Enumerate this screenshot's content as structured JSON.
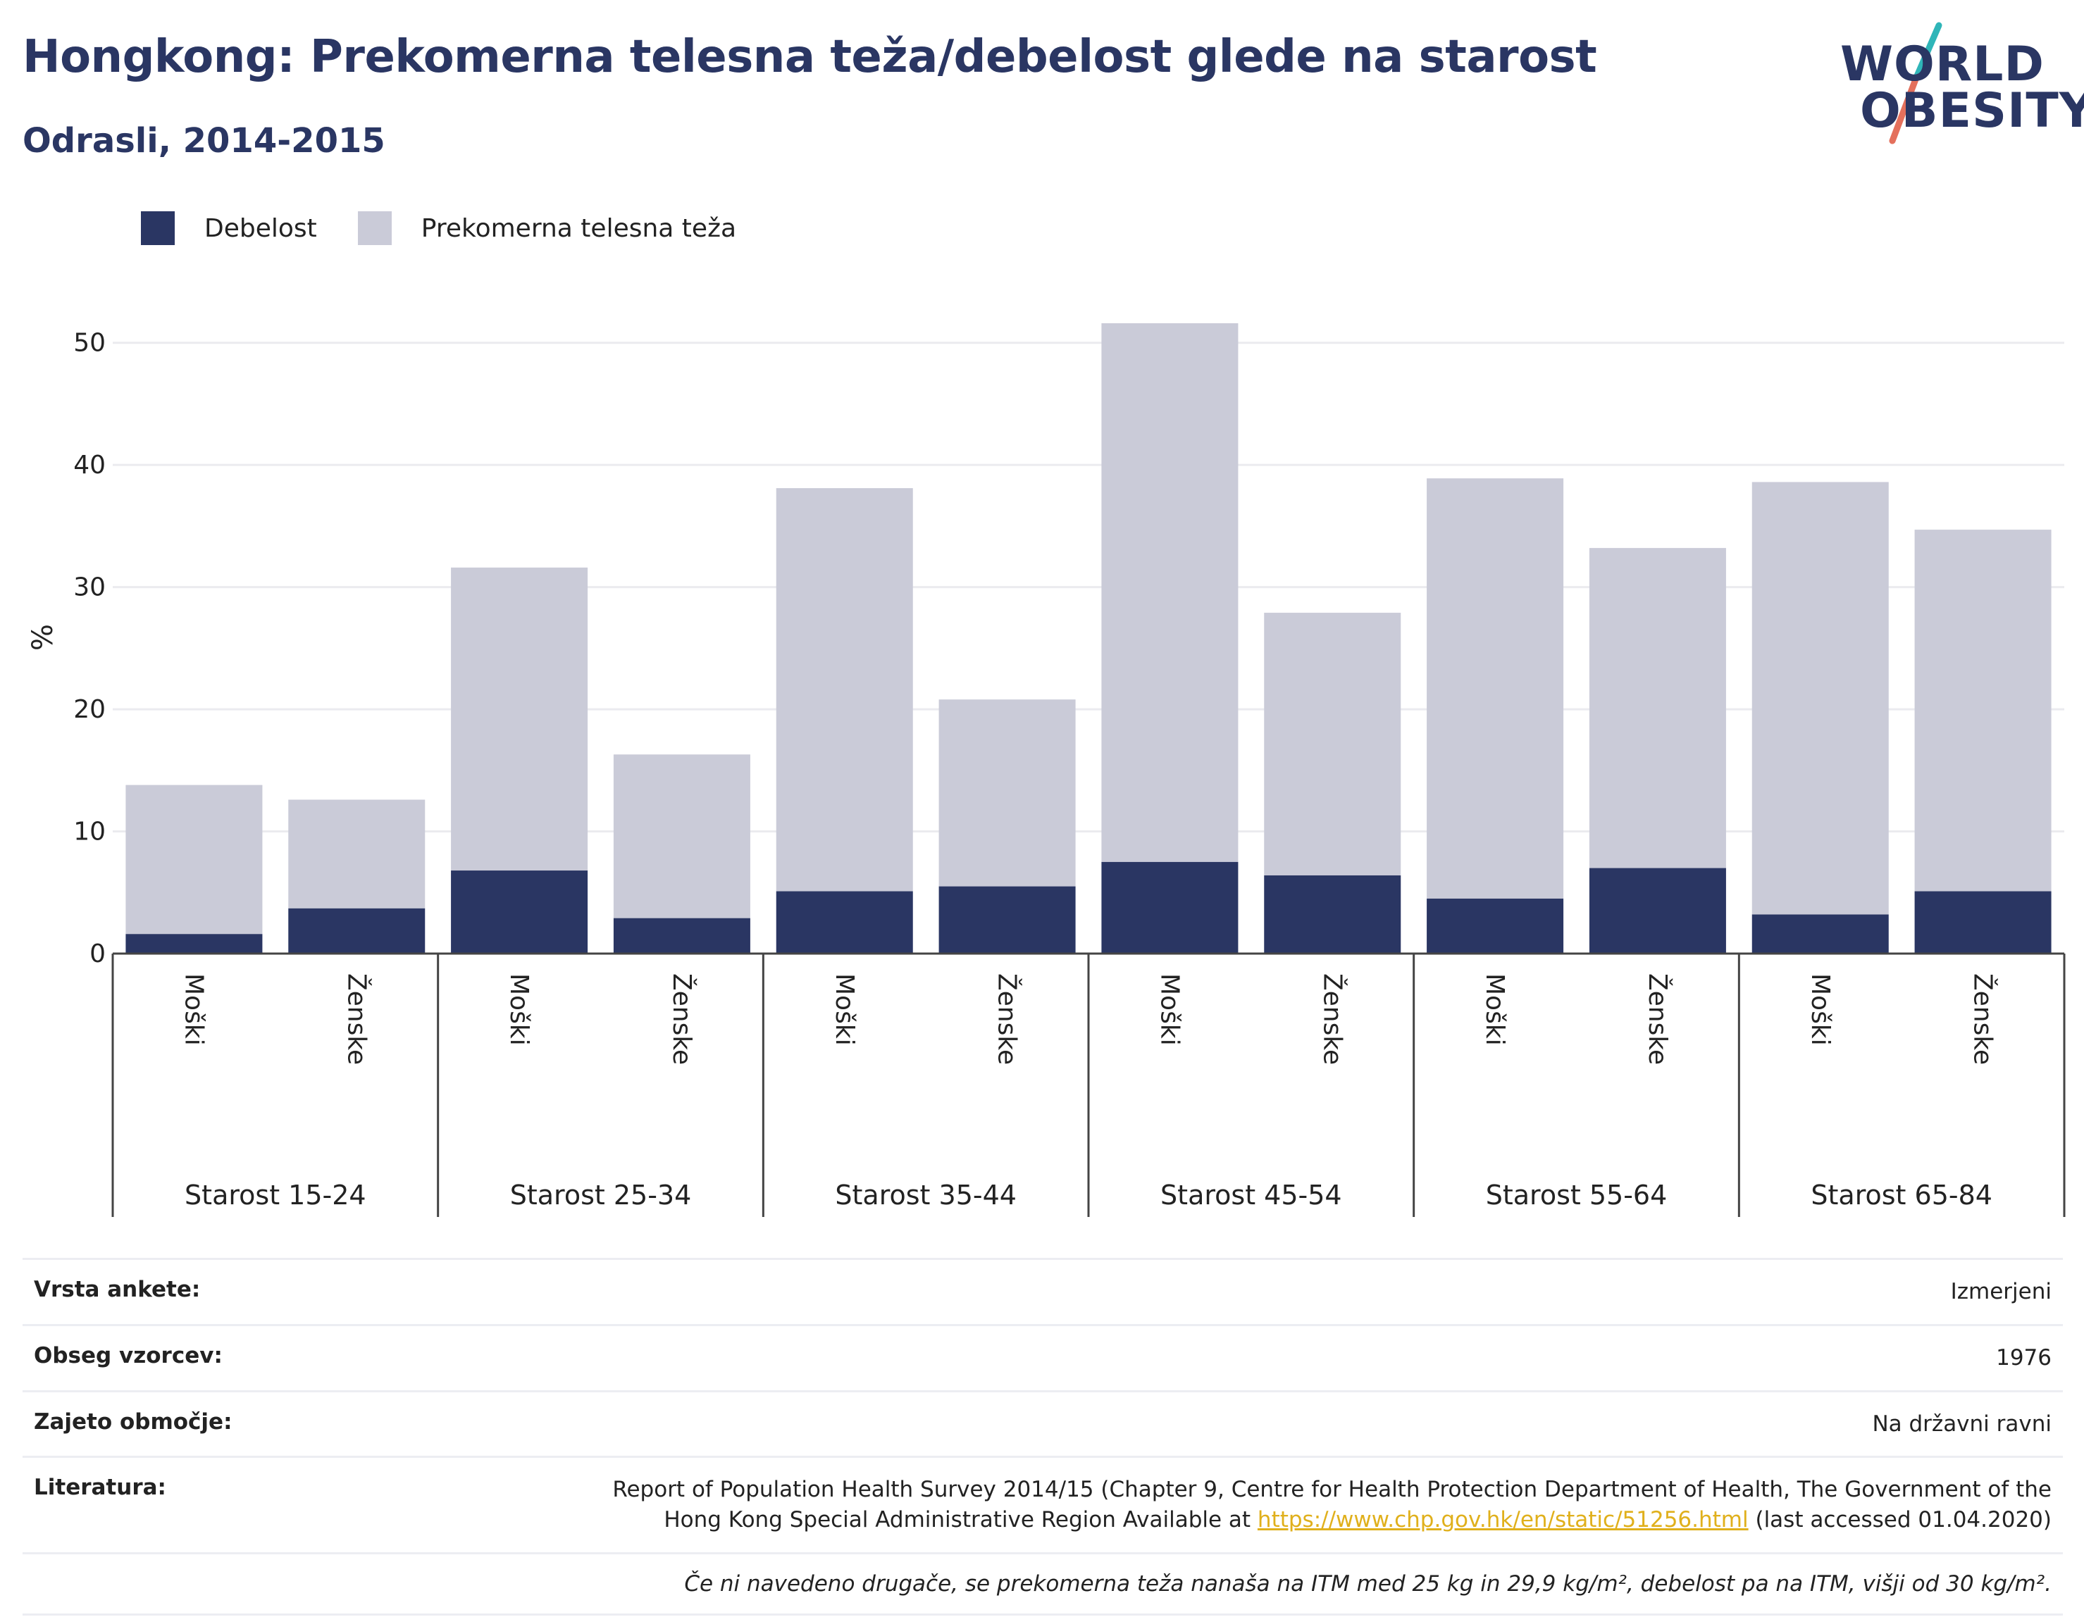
{
  "title": "Hongkong: Prekomerna telesna teža/debelost glede na starost",
  "subtitle": "Odrasli, 2014-2015",
  "logo": {
    "line1": "WORLD",
    "line2": "OBESITY",
    "accent_colors": [
      "#2fb5b8",
      "#e4705c"
    ]
  },
  "colors": {
    "obesity": "#2a3663",
    "overweight": "#cacbd8",
    "title": "#2a3663",
    "link": "#e0b01c"
  },
  "legend": [
    {
      "label": "Debelost",
      "color": "#2a3663"
    },
    {
      "label": "Prekomerna telesna teža",
      "color": "#cacbd8"
    }
  ],
  "chart_data": {
    "type": "bar",
    "stacked": true,
    "ylabel": "%",
    "ylim": [
      0,
      52
    ],
    "yticks": [
      0,
      10,
      20,
      30,
      40,
      50
    ],
    "grid": true,
    "legend_position": "top-left",
    "groups": [
      "Starost 15-24",
      "Starost 25-34",
      "Starost 35-44",
      "Starost 45-54",
      "Starost 55-64",
      "Starost 65-84"
    ],
    "subcategories": [
      "Moški",
      "Ženske"
    ],
    "series": [
      {
        "name": "Debelost",
        "values": [
          1.6,
          3.7,
          6.8,
          2.9,
          5.1,
          5.5,
          7.5,
          6.4,
          4.5,
          7.0,
          3.2,
          5.1
        ]
      },
      {
        "name": "Prekomerna telesna teža",
        "values": [
          12.2,
          8.9,
          24.8,
          13.4,
          33.0,
          15.3,
          44.1,
          21.5,
          34.4,
          26.2,
          35.4,
          29.6
        ]
      }
    ]
  },
  "info": {
    "rows": [
      {
        "key": "Vrsta ankete:",
        "value": "Izmerjeni"
      },
      {
        "key": "Obseg vzorcev:",
        "value": "1976"
      },
      {
        "key": "Zajeto območje:",
        "value": "Na državni ravni"
      }
    ],
    "literature": {
      "key": "Literatura:",
      "line1": "Report of Population Health Survey 2014/15 (Chapter 9, Centre for Health Protection Department of Health, The Government of the",
      "line2_before": "Hong Kong Special Administrative Region Available at ",
      "link": "https://www.chp.gov.hk/en/static/51256.html",
      "line2_after": " (last accessed 01.04.2020)"
    },
    "note": "Če ni navedeno drugače, se prekomerna teža nanaša na ITM med 25 kg in 29,9 kg/m², debelost pa na ITM, višji od 30 kg/m²."
  }
}
